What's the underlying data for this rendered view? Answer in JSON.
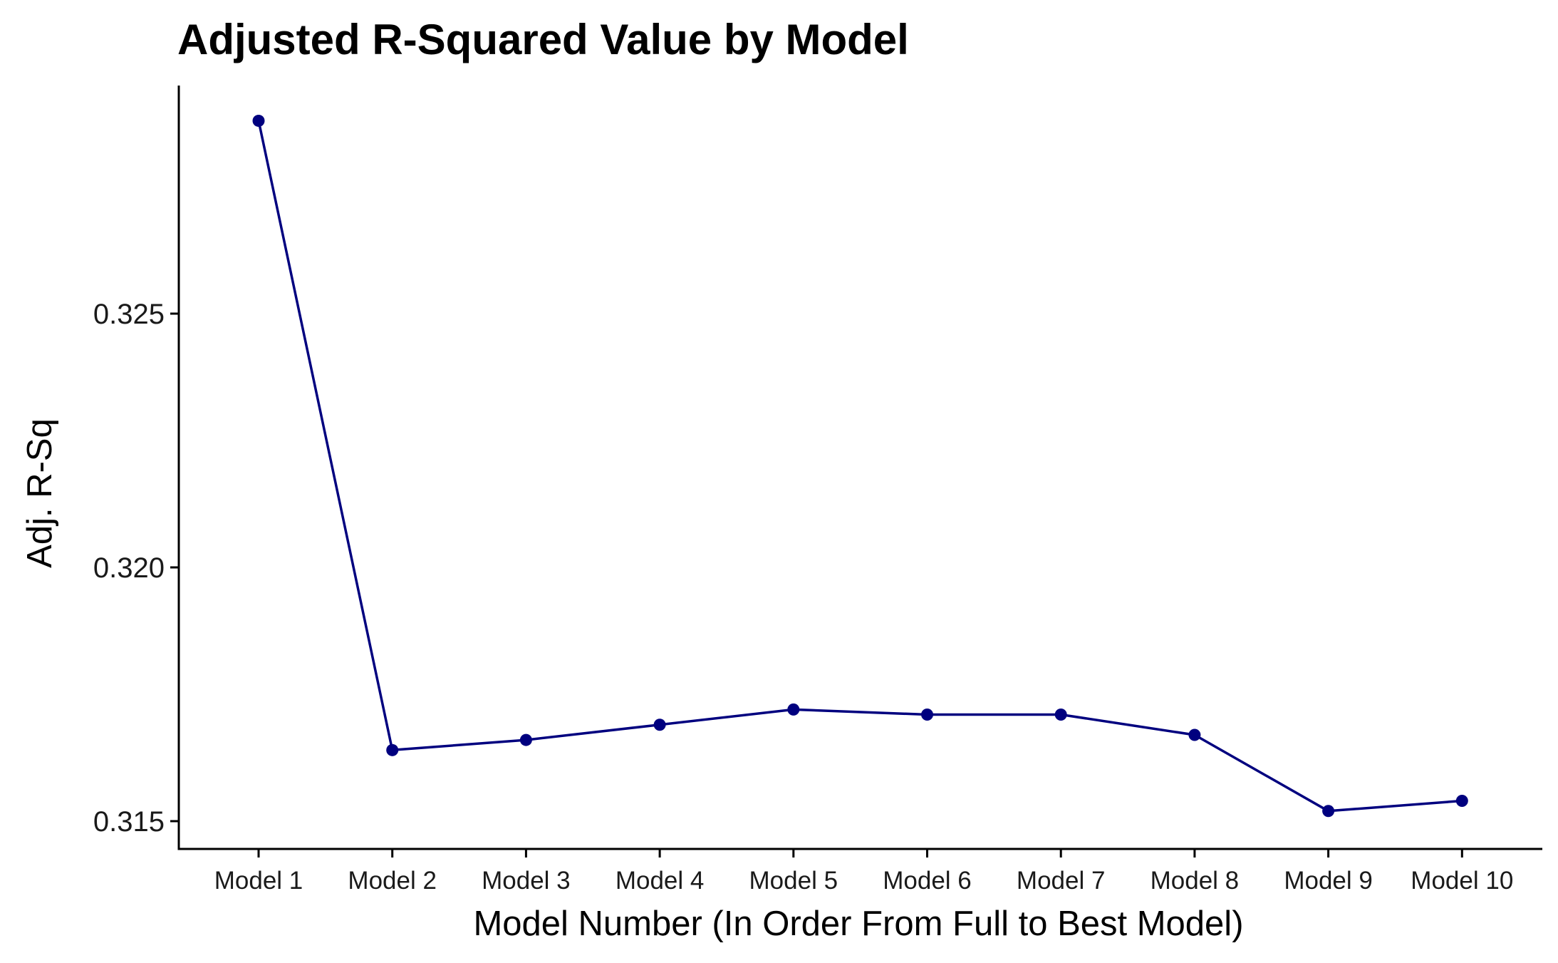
{
  "chart_data": {
    "type": "line",
    "title": "Adjusted R-Squared Value by Model",
    "xlabel": "Model Number (In Order From Full to Best Model)",
    "ylabel": "Adj. R-Sq",
    "categories": [
      "Model 1",
      "Model 2",
      "Model 3",
      "Model 4",
      "Model 5",
      "Model 6",
      "Model 7",
      "Model 8",
      "Model 9",
      "Model 10"
    ],
    "values": [
      0.3288,
      0.3164,
      0.3166,
      0.3169,
      0.3172,
      0.3171,
      0.3171,
      0.3167,
      0.3152,
      0.3154
    ],
    "yticks": [
      0.315,
      0.32,
      0.325
    ],
    "ytick_labels": [
      "0.315",
      "0.320",
      "0.325"
    ],
    "ylim": [
      0.3145,
      0.3295
    ],
    "grid": false,
    "legend": "none",
    "colors": {
      "series": "#00007F",
      "axis": "#000000"
    }
  }
}
